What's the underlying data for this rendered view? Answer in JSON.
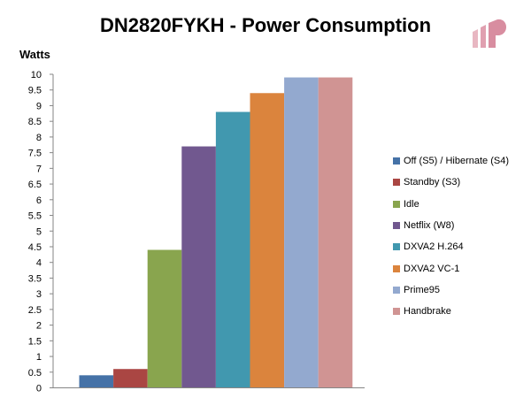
{
  "chart_data": {
    "type": "bar",
    "title": "DN2820FYKH - Power Consumption",
    "ylabel": "Watts",
    "xlabel": "",
    "ylim": [
      0,
      10
    ],
    "ytick_step": 0.5,
    "yticks": [
      "0",
      "0.5",
      "1",
      "1.5",
      "2",
      "2.5",
      "3",
      "3.5",
      "4",
      "4.5",
      "5",
      "5.5",
      "6",
      "6.5",
      "7",
      "7.5",
      "8",
      "8.5",
      "9",
      "9.5",
      "10"
    ],
    "grid": false,
    "legend_position": "right",
    "series": [
      {
        "name": "Off (S5) / Hibernate (S4)",
        "value": 0.4,
        "color": "#4572A7"
      },
      {
        "name": "Standby (S3)",
        "value": 0.6,
        "color": "#AA4643"
      },
      {
        "name": "Idle",
        "value": 4.4,
        "color": "#89A54E"
      },
      {
        "name": "Netflix (W8)",
        "value": 7.7,
        "color": "#71588F"
      },
      {
        "name": "DXVA2 H.264",
        "value": 8.8,
        "color": "#4198AF"
      },
      {
        "name": "DXVA2 VC-1",
        "value": 9.4,
        "color": "#DB843D"
      },
      {
        "name": "Prime95",
        "value": 9.9,
        "color": "#93A9CF"
      },
      {
        "name": "Handbrake",
        "value": 9.9,
        "color": "#D09493"
      }
    ]
  }
}
